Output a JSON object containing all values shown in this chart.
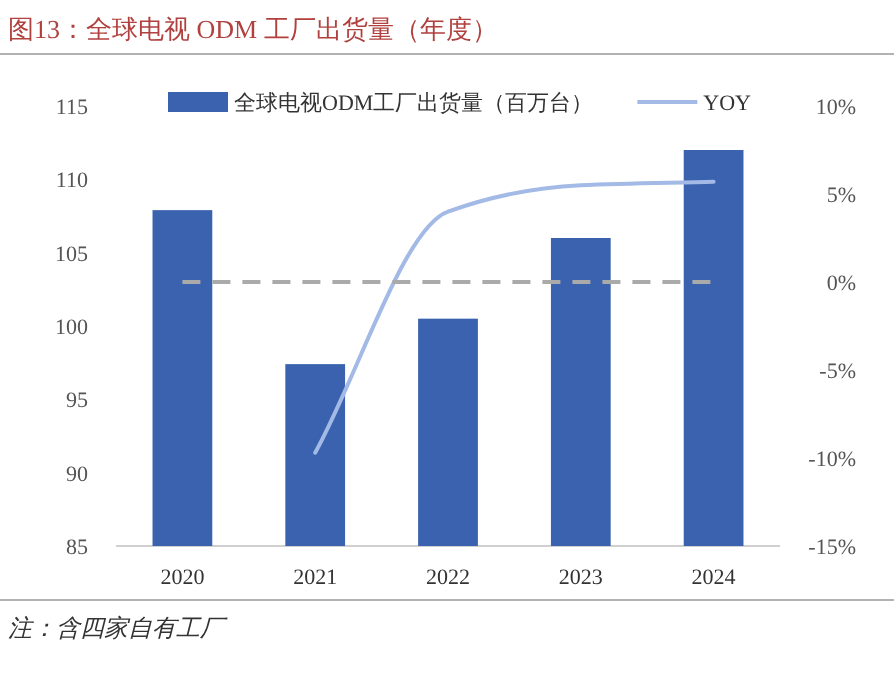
{
  "chart_data": {
    "type": "bar",
    "title": "图13：全球电视 ODM 工厂出货量（年度）",
    "categories": [
      "2020",
      "2021",
      "2022",
      "2023",
      "2024"
    ],
    "series": [
      {
        "name": "全球电视ODM工厂出货量（百万台）",
        "color": "#3a62ae",
        "values": [
          107.9,
          97.4,
          100.5,
          106.0,
          112.0
        ]
      },
      {
        "name": "YOY",
        "type": "line",
        "axis": "y2",
        "color": "#a3b9e6",
        "values": [
          null,
          -9.7,
          4.0,
          5.5,
          5.7
        ]
      }
    ],
    "ylim": [
      85,
      115
    ],
    "yticks": [
      85,
      90,
      95,
      100,
      105,
      110,
      115
    ],
    "y2lim": [
      -15,
      10
    ],
    "y2ticks": [
      {
        "value": -15,
        "label": "-15%"
      },
      {
        "value": -10,
        "label": "-10%"
      },
      {
        "value": -5,
        "label": "-5%"
      },
      {
        "value": 0,
        "label": "0%"
      },
      {
        "value": 5,
        "label": "5%"
      },
      {
        "value": 10,
        "label": "10%"
      }
    ],
    "ref_lines": [
      {
        "axis": "y2",
        "value": 0,
        "color": "#aaaaaa",
        "line_style": "dashed"
      }
    ],
    "legend": "top",
    "annotations": [
      "注：含四家自有工厂"
    ]
  }
}
